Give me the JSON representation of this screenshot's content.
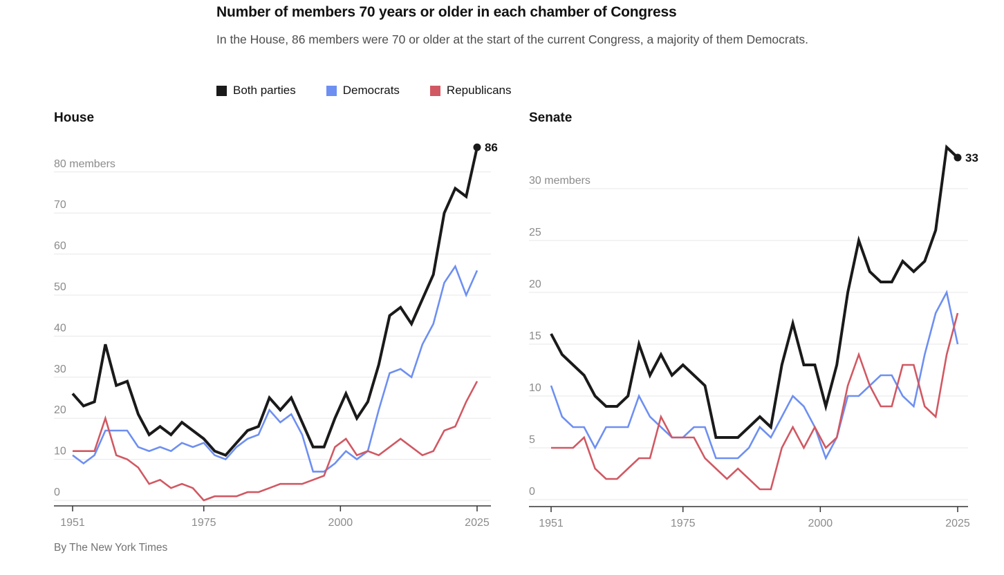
{
  "header": {
    "title": "Number of members 70 years or older in each chamber of Congress",
    "subtitle": "In the House, 86 members were 70 or older at the start of the current Congress, a majority of them Democrats."
  },
  "legend": [
    {
      "label": "Both parties",
      "color": "#1a1a1a"
    },
    {
      "label": "Democrats",
      "color": "#6d8ff2"
    },
    {
      "label": "Republicans",
      "color": "#d15862"
    }
  ],
  "footer": {
    "byline": "By The New York Times"
  },
  "colors": {
    "both": "#1a1a1a",
    "democrats": "#6d8ff2",
    "republicans": "#d15862",
    "grid": "#e7e7e7",
    "axis": "#333333",
    "tick_text": "#8b8b8b"
  },
  "chart_data": [
    {
      "type": "line",
      "title": "House",
      "ylabel": "members",
      "ylim": [
        0,
        88
      ],
      "grid": true,
      "legend_position": "top",
      "yticks": [
        0,
        10,
        20,
        30,
        40,
        50,
        60,
        70,
        80
      ],
      "ytick_top_label": "80 members",
      "xticks": [
        1951,
        1975,
        2000,
        2025
      ],
      "x": [
        1951,
        1953,
        1955,
        1957,
        1959,
        1961,
        1963,
        1965,
        1967,
        1969,
        1971,
        1973,
        1975,
        1977,
        1979,
        1981,
        1983,
        1985,
        1987,
        1989,
        1991,
        1993,
        1995,
        1997,
        1999,
        2001,
        2003,
        2005,
        2007,
        2009,
        2011,
        2013,
        2015,
        2017,
        2019,
        2021,
        2023,
        2025
      ],
      "series": [
        {
          "name": "Both parties",
          "color": "#1a1a1a",
          "values": [
            26,
            23,
            24,
            38,
            28,
            29,
            21,
            16,
            18,
            16,
            19,
            17,
            15,
            12,
            11,
            14,
            17,
            18,
            25,
            22,
            25,
            19,
            13,
            13,
            20,
            26,
            20,
            24,
            33,
            45,
            47,
            43,
            49,
            55,
            70,
            76,
            74,
            86
          ]
        },
        {
          "name": "Democrats",
          "color": "#6d8ff2",
          "values": [
            11,
            9,
            11,
            17,
            17,
            17,
            13,
            12,
            13,
            12,
            14,
            13,
            14,
            11,
            10,
            13,
            15,
            16,
            22,
            19,
            21,
            16,
            7,
            7,
            9,
            12,
            10,
            12,
            22,
            31,
            32,
            30,
            38,
            43,
            53,
            57,
            50,
            56
          ]
        },
        {
          "name": "Republicans",
          "color": "#d15862",
          "values": [
            12,
            12,
            12,
            20,
            11,
            10,
            8,
            4,
            5,
            3,
            4,
            3,
            0,
            1,
            1,
            1,
            2,
            2,
            3,
            4,
            4,
            4,
            5,
            6,
            13,
            15,
            11,
            12,
            11,
            13,
            15,
            13,
            11,
            12,
            17,
            18,
            24,
            29
          ]
        }
      ],
      "end_annotation": {
        "series": "Both parties",
        "year": 2025,
        "value": 86,
        "label": "86"
      }
    },
    {
      "type": "line",
      "title": "Senate",
      "ylabel": "members",
      "ylim": [
        0,
        36
      ],
      "grid": true,
      "legend_position": "top",
      "yticks": [
        0,
        5,
        10,
        15,
        20,
        25,
        30
      ],
      "ytick_top_label": "30 members",
      "xticks": [
        1951,
        1975,
        2000,
        2025
      ],
      "x": [
        1951,
        1953,
        1955,
        1957,
        1959,
        1961,
        1963,
        1965,
        1967,
        1969,
        1971,
        1973,
        1975,
        1977,
        1979,
        1981,
        1983,
        1985,
        1987,
        1989,
        1991,
        1993,
        1995,
        1997,
        1999,
        2001,
        2003,
        2005,
        2007,
        2009,
        2011,
        2013,
        2015,
        2017,
        2019,
        2021,
        2023,
        2025
      ],
      "series": [
        {
          "name": "Both parties",
          "color": "#1a1a1a",
          "values": [
            16,
            14,
            13,
            12,
            10,
            9,
            9,
            10,
            15,
            12,
            14,
            12,
            13,
            12,
            11,
            6,
            6,
            6,
            7,
            8,
            7,
            13,
            17,
            13,
            13,
            9,
            13,
            20,
            25,
            22,
            21,
            21,
            23,
            22,
            23,
            26,
            34,
            33
          ]
        },
        {
          "name": "Democrats",
          "color": "#6d8ff2",
          "values": [
            11,
            8,
            7,
            7,
            5,
            7,
            7,
            7,
            10,
            8,
            7,
            6,
            6,
            7,
            7,
            4,
            4,
            4,
            5,
            7,
            6,
            8,
            10,
            9,
            7,
            4,
            6,
            10,
            10,
            11,
            12,
            12,
            10,
            9,
            14,
            18,
            20,
            15
          ]
        },
        {
          "name": "Republicans",
          "color": "#d15862",
          "values": [
            5,
            5,
            5,
            6,
            3,
            2,
            2,
            3,
            4,
            4,
            8,
            6,
            6,
            6,
            4,
            3,
            2,
            3,
            2,
            1,
            1,
            5,
            7,
            5,
            7,
            5,
            6,
            11,
            14,
            11,
            9,
            9,
            13,
            13,
            9,
            8,
            14,
            18
          ]
        }
      ],
      "end_annotation": {
        "series": "Both parties",
        "year": 2025,
        "value": 33,
        "label": "33"
      }
    }
  ]
}
